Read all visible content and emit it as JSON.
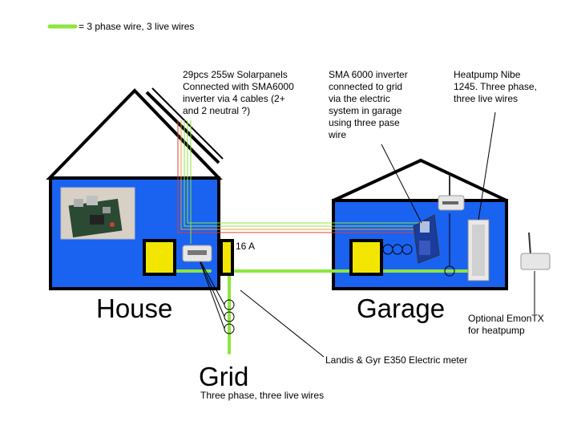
{
  "legend": {
    "label": "= 3 phase wire, 3 live wires",
    "color": "#8ee53f"
  },
  "labels": {
    "house": "House",
    "garage": "Garage",
    "grid": "Grid",
    "grid_desc": "Three phase, three live wires",
    "fuse": "16 A",
    "solar": "29pcs 255w Solarpanels\nConnected with SMA6000\ninverter via 4 cables (2+\nand 2 neutral ?)",
    "inverter": "SMA 6000 inverter\nconnected to grid\nvia the electric\nsystem in garage\nusing three pase\nwire",
    "heatpump": "Heatpump Nibe\n1245. Three phase,\nthree live wires",
    "meter": "Landis & Gyr E350 Electric meter",
    "emontx": "Optional EmonTX\nfor heatpump"
  },
  "colors": {
    "wall": "#1a62f0",
    "outline": "#000000",
    "box": "#f2e600",
    "wire_green": "#8ee53f",
    "wire_red": "#e04030",
    "wire_orange": "#e8a040"
  },
  "icons": {
    "raspberry_pi": "raspberry-pi-board",
    "emon_base_house": "emon-base-device",
    "router": "wifi-router",
    "inverter": "sma-inverter",
    "heatpump": "heatpump-unit",
    "emontx": "emontx-device"
  }
}
